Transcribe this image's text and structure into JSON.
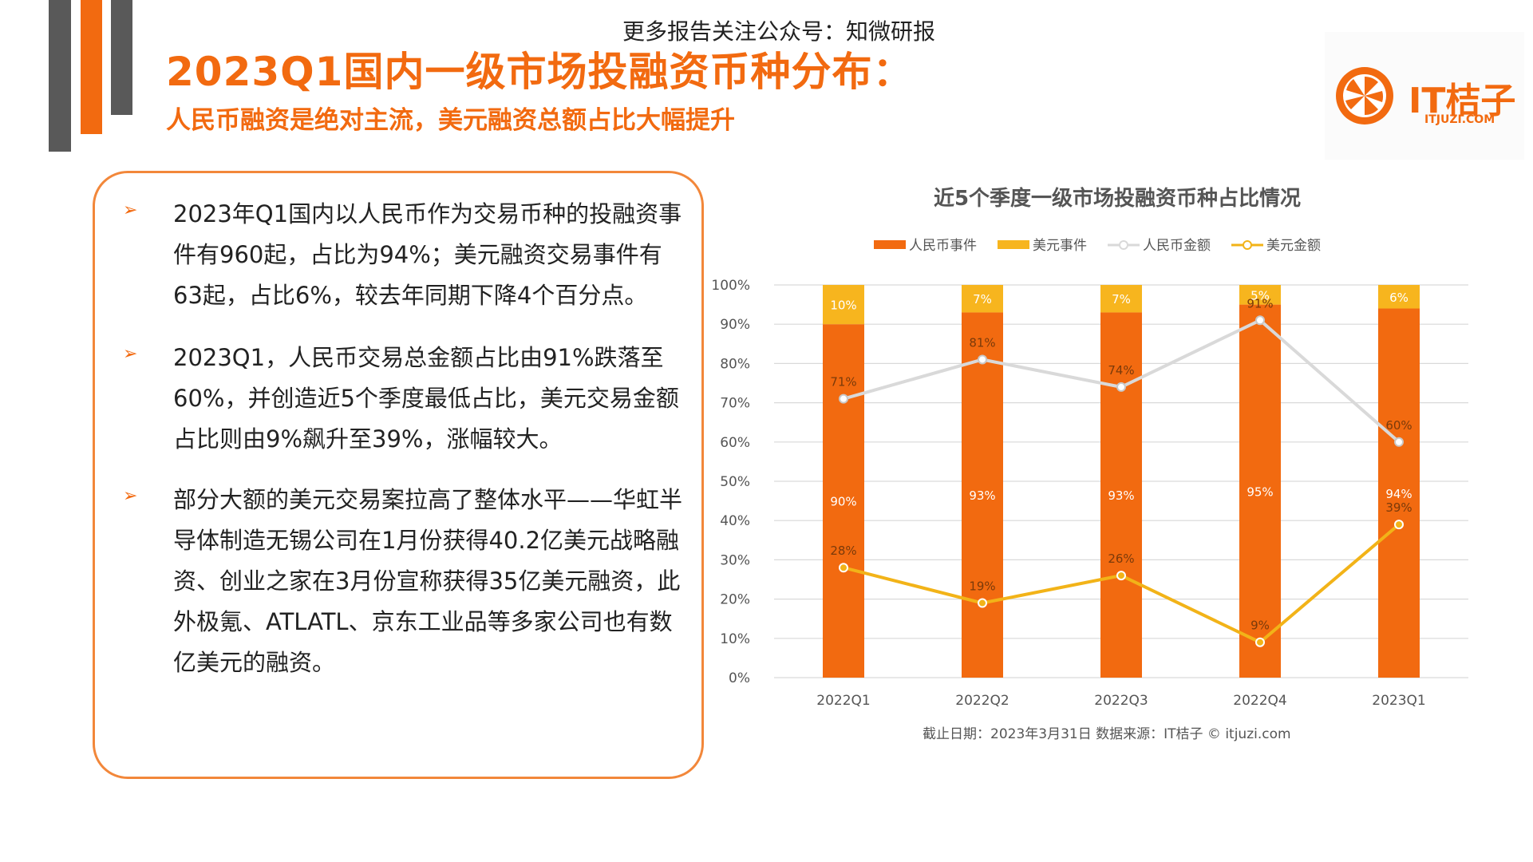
{
  "header": {
    "notice": "更多报告关注公众号：知微研报",
    "title": "2023Q1国内一级市场投融资币种分布：",
    "subtitle": "人民币融资是绝对主流，美元融资总额占比大幅提升"
  },
  "logo": {
    "name": "IT桔子",
    "url": "ITJUZI.COM"
  },
  "points": [
    {
      "text": "2023年Q1国内以人民币作为交易币种的投融资事件有960起，占比为94%；美元融资交易事件有63起，占比6%，较去年同期下降4个百分点。"
    },
    {
      "text": "2023Q1，人民币交易总金额占比由91%跌落至60%，并创造近5个季度最低占比，美元交易金额占比则由9%飙升至39%，涨幅较大。"
    },
    {
      "text": "部分大额的美元交易案拉高了整体水平——华虹半导体制造无锡公司在1月份获得40.2亿美元战略融资、创业之家在3月份宣称获得35亿美元融资，此外极氪、ATLATL、京东工业品等多家公司也有数亿美元的融资。"
    }
  ],
  "chart_data": {
    "type": "bar",
    "title": "近5个季度一级市场投融资币种占比情况",
    "categories": [
      "2022Q1",
      "2022Q2",
      "2022Q3",
      "2022Q4",
      "2023Q1"
    ],
    "series": [
      {
        "name": "人民币事件",
        "kind": "bar",
        "stack": "events",
        "values": [
          90,
          93,
          93,
          95,
          94
        ],
        "labels": [
          "90%",
          "93%",
          "93%",
          "95%",
          "94%"
        ],
        "color": "#f26a10"
      },
      {
        "name": "美元事件",
        "kind": "bar",
        "stack": "events",
        "values": [
          10,
          7,
          7,
          5,
          6
        ],
        "labels": [
          "10%",
          "7%",
          "7%",
          "5%",
          "6%"
        ],
        "color": "#f7b51e"
      },
      {
        "name": "人民币金额",
        "kind": "line",
        "values": [
          71,
          81,
          74,
          91,
          60
        ],
        "labels": [
          "71%",
          "81%",
          "74%",
          "91%",
          "60%"
        ],
        "color": "#d9d9d9"
      },
      {
        "name": "美元金额",
        "kind": "line",
        "values": [
          28,
          19,
          26,
          9,
          39
        ],
        "labels": [
          "28%",
          "19%",
          "26%",
          "9%",
          "39%"
        ],
        "color": "#f2b318"
      }
    ],
    "y_ticks": [
      "0%",
      "10%",
      "20%",
      "30%",
      "40%",
      "50%",
      "60%",
      "70%",
      "80%",
      "90%",
      "100%"
    ],
    "ylim": [
      0,
      100
    ],
    "grid": true,
    "legend": "top",
    "footnote": "截止日期：2023年3月31日    数据来源：IT桔子 © itjuzi.com"
  }
}
